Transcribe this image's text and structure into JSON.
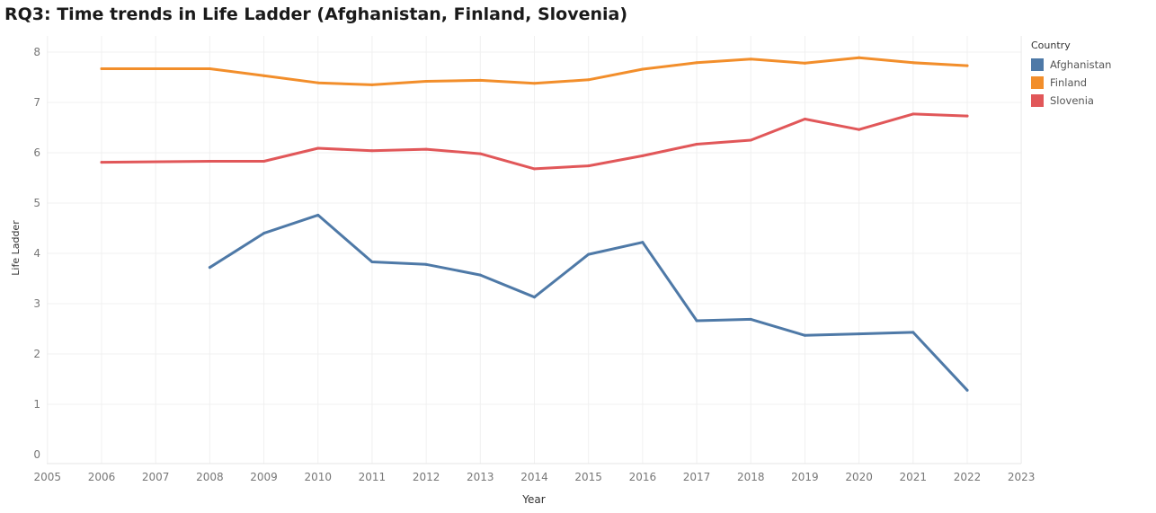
{
  "title": "RQ3: Time trends in Life Ladder (Afghanistan, Finland, Slovenia)",
  "legend": {
    "title": "Country",
    "items": [
      {
        "label": "Afghanistan",
        "color": "#4e79a7"
      },
      {
        "label": "Finland",
        "color": "#f28e2b"
      },
      {
        "label": "Slovenia",
        "color": "#e15759"
      }
    ]
  },
  "chart_data": {
    "type": "line",
    "xlabel": "Year",
    "ylabel": "Life Ladder",
    "xlim": [
      2005,
      2023
    ],
    "ylim": [
      0,
      8
    ],
    "x_ticks": [
      2005,
      2006,
      2007,
      2008,
      2009,
      2010,
      2011,
      2012,
      2013,
      2014,
      2015,
      2016,
      2017,
      2018,
      2019,
      2020,
      2021,
      2022,
      2023
    ],
    "y_ticks": [
      0,
      1,
      2,
      3,
      4,
      5,
      6,
      7,
      8
    ],
    "grid": true,
    "legend_position": "right",
    "series": [
      {
        "name": "Afghanistan",
        "color": "#4e79a7",
        "x": [
          2008,
          2009,
          2010,
          2011,
          2012,
          2013,
          2014,
          2015,
          2016,
          2017,
          2018,
          2019,
          2020,
          2021,
          2022
        ],
        "values": [
          3.72,
          4.4,
          4.76,
          3.83,
          3.78,
          3.57,
          3.13,
          3.98,
          4.22,
          2.66,
          2.69,
          2.37,
          2.4,
          2.43,
          1.28
        ]
      },
      {
        "name": "Finland",
        "color": "#f28e2b",
        "x": [
          2006,
          2008,
          2009,
          2010,
          2011,
          2012,
          2013,
          2014,
          2015,
          2016,
          2017,
          2018,
          2019,
          2020,
          2021,
          2022
        ],
        "values": [
          7.67,
          7.67,
          7.53,
          7.39,
          7.35,
          7.42,
          7.44,
          7.38,
          7.45,
          7.66,
          7.79,
          7.86,
          7.78,
          7.89,
          7.79,
          7.73
        ]
      },
      {
        "name": "Slovenia",
        "color": "#e15759",
        "x": [
          2006,
          2008,
          2009,
          2010,
          2011,
          2012,
          2013,
          2014,
          2015,
          2016,
          2017,
          2018,
          2019,
          2020,
          2021,
          2022
        ],
        "values": [
          5.81,
          5.83,
          5.83,
          6.09,
          6.04,
          6.07,
          5.98,
          5.68,
          5.74,
          5.94,
          6.17,
          6.25,
          6.67,
          6.46,
          6.77,
          6.73
        ]
      }
    ]
  }
}
